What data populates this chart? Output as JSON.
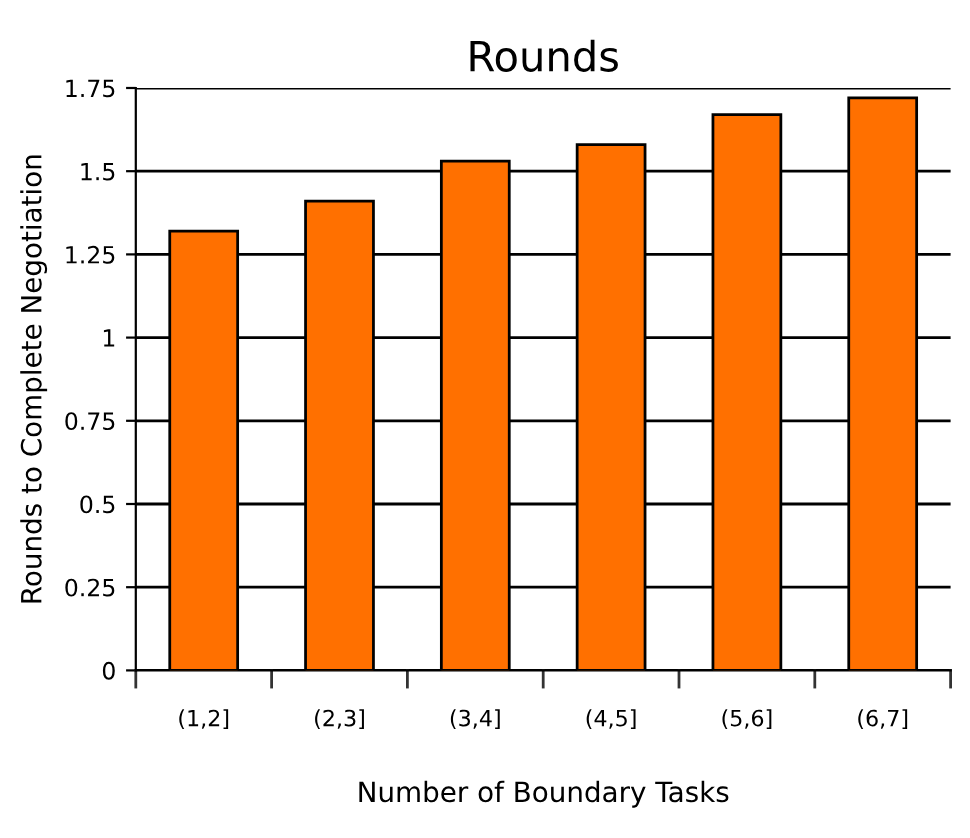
{
  "chart_data": {
    "type": "bar",
    "title": "Rounds",
    "xlabel": "Number of Boundary Tasks",
    "ylabel": "Rounds to Complete Negotiation",
    "categories": [
      "(1,2]",
      "(2,3]",
      "(3,4]",
      "(4,5]",
      "(5,6]",
      "(6,7]"
    ],
    "values": [
      1.32,
      1.41,
      1.53,
      1.58,
      1.67,
      1.72
    ],
    "color": "#ff7000",
    "ylim": [
      0,
      1.75
    ],
    "yticks": [
      0,
      0.25,
      0.5,
      0.75,
      1,
      1.25,
      1.5,
      1.75
    ],
    "grid": "y",
    "legend": false
  }
}
